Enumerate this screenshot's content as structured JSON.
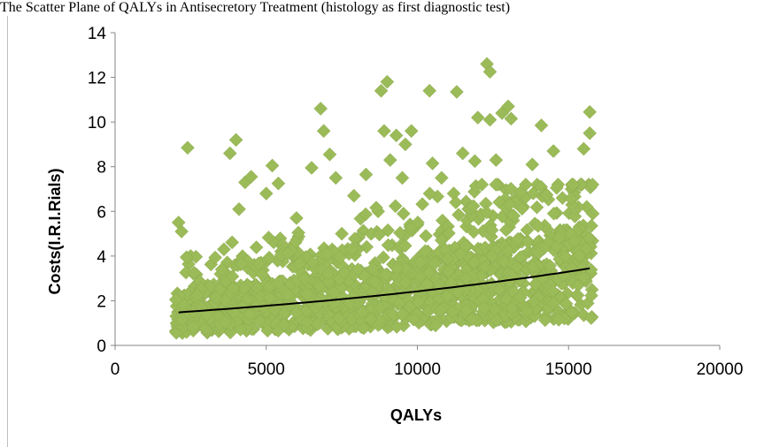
{
  "chart_data": {
    "type": "scatter",
    "title": "The Scatter Plane of QALYs in Antisecretory Treatment (histology  as first diagnostic test)",
    "xlabel": "QALYs",
    "ylabel": "Costs(I.R.I.Rials)",
    "xlim": [
      0,
      20000
    ],
    "ylim": [
      0,
      14
    ],
    "xticks": [
      "0",
      "5000",
      "10000",
      "15000",
      "20000"
    ],
    "yticks": [
      "0",
      "2",
      "4",
      "6",
      "8",
      "10",
      "12",
      "14"
    ],
    "grid": false,
    "legend": "none",
    "marker": "diamond",
    "point_count": 1500,
    "x_range_of_points": [
      2000,
      15800
    ],
    "series": [
      {
        "points": [
          [
            2400,
            8.85
          ],
          [
            3800,
            8.6
          ],
          [
            4000,
            9.2
          ],
          [
            4100,
            6.1
          ],
          [
            4300,
            7.3
          ],
          [
            4500,
            7.55
          ],
          [
            5000,
            6.8
          ],
          [
            5200,
            8.05
          ],
          [
            5400,
            7.25
          ],
          [
            6500,
            7.95
          ],
          [
            6800,
            10.6
          ],
          [
            6900,
            9.6
          ],
          [
            7100,
            8.55
          ],
          [
            7300,
            7.5
          ],
          [
            7900,
            6.7
          ],
          [
            8300,
            7.65
          ],
          [
            8700,
            6.0
          ],
          [
            8800,
            11.4
          ],
          [
            8900,
            9.6
          ],
          [
            9000,
            11.8
          ],
          [
            9100,
            8.3
          ],
          [
            9300,
            9.4
          ],
          [
            9500,
            7.5
          ],
          [
            9600,
            9.0
          ],
          [
            9800,
            9.6
          ],
          [
            10400,
            11.4
          ],
          [
            10500,
            8.15
          ],
          [
            10800,
            7.5
          ],
          [
            11300,
            11.35
          ],
          [
            11500,
            8.6
          ],
          [
            11900,
            8.25
          ],
          [
            12000,
            10.2
          ],
          [
            12300,
            12.6
          ],
          [
            12400,
            12.25
          ],
          [
            12400,
            10.1
          ],
          [
            12600,
            8.3
          ],
          [
            12800,
            10.4
          ],
          [
            13000,
            10.7
          ],
          [
            13100,
            10.15
          ],
          [
            13800,
            8.1
          ],
          [
            14100,
            9.85
          ],
          [
            14500,
            8.7
          ],
          [
            15100,
            7.0
          ],
          [
            15500,
            8.8
          ],
          [
            15700,
            10.45
          ],
          [
            15700,
            9.5
          ],
          [
            2100,
            5.5
          ],
          [
            2200,
            5.1
          ],
          [
            2500,
            4.0
          ],
          [
            3600,
            4.3
          ],
          [
            5500,
            4.5
          ],
          [
            6000,
            5.7
          ],
          [
            7500,
            5.0
          ],
          [
            10000,
            5.4
          ],
          [
            11200,
            6.8
          ],
          [
            12500,
            5.8
          ],
          [
            13500,
            6.2
          ],
          [
            14800,
            6.6
          ],
          [
            15600,
            6.2
          ],
          [
            15800,
            5.9
          ]
        ],
        "trend": {
          "type": "exponential",
          "from": [
            2100,
            1.48
          ],
          "to": [
            15700,
            3.45
          ]
        }
      }
    ]
  }
}
